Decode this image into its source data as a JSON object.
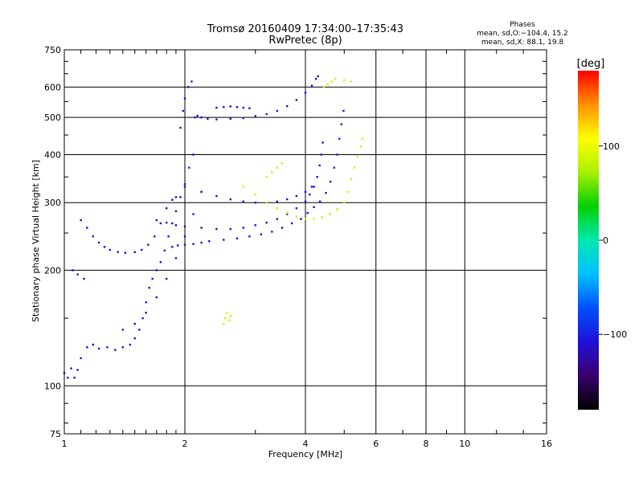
{
  "header": {
    "title_line1": "Tromsø 20160409 17:34:00–17:35:43",
    "title_line2": "RwPretec (8p)",
    "phases_title": "Phases",
    "phases_line1": "mean, sd,O:−104.4, 15.2",
    "phases_line2": "mean, sd,X:  88.1, 19.8"
  },
  "colorbar": {
    "label": "[deg]",
    "ticks": [
      "100",
      "0",
      "−100"
    ],
    "tick_values": [
      100,
      0,
      -100
    ],
    "range": [
      -180,
      180
    ],
    "colors": [
      "#000000",
      "#3a006e",
      "#1f10d8",
      "#0050ff",
      "#00c0ff",
      "#00e8b0",
      "#00d000",
      "#a8f000",
      "#ffff00",
      "#ff9000",
      "#ff0000"
    ]
  },
  "chart_data": {
    "type": "scatter",
    "title": "Tromsø 20160409 17:34:00–17:35:43",
    "subtitle": "RwPretec (8p)",
    "xlabel": "Frequency [MHz]",
    "ylabel": "Stationary phase Virtual Height [km]",
    "xscale": "log",
    "yscale": "log",
    "xlim": [
      1,
      16
    ],
    "ylim": [
      75,
      750
    ],
    "xticks": [
      1,
      2,
      4,
      6,
      8,
      10,
      16
    ],
    "xtick_labels": [
      "1",
      "2",
      "4",
      "6",
      "8",
      "10",
      "16"
    ],
    "yticks": [
      75,
      100,
      200,
      300,
      400,
      500,
      600,
      750
    ],
    "ytick_labels": [
      "75",
      "100",
      "200",
      "300",
      "400",
      "500",
      "600",
      "750"
    ],
    "grid": true,
    "series": [
      {
        "points": [
          [
            1.0,
            108
          ],
          [
            1.02,
            105
          ],
          [
            1.04,
            111
          ],
          [
            1.06,
            105
          ],
          [
            1.08,
            110
          ],
          [
            1.1,
            118
          ],
          [
            1.14,
            126
          ],
          [
            1.18,
            128
          ],
          [
            1.22,
            125
          ],
          [
            1.28,
            126
          ],
          [
            1.34,
            124
          ],
          [
            1.4,
            126
          ],
          [
            1.46,
            128
          ],
          [
            1.5,
            133
          ],
          [
            1.54,
            140
          ],
          [
            1.57,
            150
          ],
          [
            1.6,
            165
          ],
          [
            1.63,
            180
          ],
          [
            1.66,
            190
          ],
          [
            1.7,
            200
          ],
          [
            1.74,
            210
          ],
          [
            1.78,
            225
          ],
          [
            1.82,
            245
          ],
          [
            1.86,
            265
          ],
          [
            1.9,
            285
          ],
          [
            1.95,
            310
          ],
          [
            2.0,
            335
          ],
          [
            2.05,
            370
          ],
          [
            2.1,
            400
          ],
          [
            1.95,
            470
          ],
          [
            1.98,
            520
          ],
          [
            2.0,
            560
          ],
          [
            2.04,
            600
          ],
          [
            2.08,
            620
          ],
          [
            2.12,
            500
          ],
          [
            2.15,
            505
          ],
          [
            2.2,
            500
          ],
          [
            2.28,
            496
          ],
          [
            2.4,
            494
          ],
          [
            2.6,
            496
          ],
          [
            2.8,
            498
          ],
          [
            3.0,
            504
          ],
          [
            3.2,
            510
          ],
          [
            3.4,
            520
          ],
          [
            3.6,
            535
          ],
          [
            3.8,
            555
          ],
          [
            4.0,
            580
          ],
          [
            4.15,
            605
          ],
          [
            4.25,
            630
          ],
          [
            4.3,
            640
          ],
          [
            1.1,
            270
          ],
          [
            1.14,
            258
          ],
          [
            1.18,
            245
          ],
          [
            1.22,
            236
          ],
          [
            1.26,
            230
          ],
          [
            1.3,
            226
          ],
          [
            1.36,
            223
          ],
          [
            1.42,
            222
          ],
          [
            1.5,
            223
          ],
          [
            1.56,
            226
          ],
          [
            1.62,
            233
          ],
          [
            1.68,
            245
          ],
          [
            1.74,
            265
          ],
          [
            1.8,
            290
          ],
          [
            1.86,
            305
          ],
          [
            1.9,
            310
          ],
          [
            1.86,
            230
          ],
          [
            1.92,
            232
          ],
          [
            2.0,
            233
          ],
          [
            2.1,
            234
          ],
          [
            2.2,
            236
          ],
          [
            2.3,
            238
          ],
          [
            2.5,
            240
          ],
          [
            2.7,
            242
          ],
          [
            2.9,
            245
          ],
          [
            3.1,
            248
          ],
          [
            3.3,
            252
          ],
          [
            3.5,
            258
          ],
          [
            3.7,
            265
          ],
          [
            3.9,
            272
          ],
          [
            4.05,
            282
          ],
          [
            4.2,
            292
          ],
          [
            4.35,
            302
          ],
          [
            4.5,
            318
          ],
          [
            4.62,
            340
          ],
          [
            4.72,
            370
          ],
          [
            4.8,
            400
          ],
          [
            4.86,
            440
          ],
          [
            4.92,
            480
          ],
          [
            4.98,
            520
          ],
          [
            1.7,
            270
          ],
          [
            1.8,
            266
          ],
          [
            1.9,
            262
          ],
          [
            2.0,
            260
          ],
          [
            2.2,
            258
          ],
          [
            2.4,
            256
          ],
          [
            2.6,
            256
          ],
          [
            2.8,
            258
          ],
          [
            3.0,
            262
          ],
          [
            3.2,
            266
          ],
          [
            3.4,
            272
          ],
          [
            3.6,
            280
          ],
          [
            3.8,
            290
          ],
          [
            4.0,
            302
          ],
          [
            4.1,
            315
          ],
          [
            4.2,
            330
          ],
          [
            4.28,
            350
          ],
          [
            4.34,
            375
          ],
          [
            4.38,
            400
          ],
          [
            4.42,
            430
          ],
          [
            2.0,
            330
          ],
          [
            2.2,
            320
          ],
          [
            2.4,
            312
          ],
          [
            2.6,
            306
          ],
          [
            2.8,
            302
          ],
          [
            3.0,
            300
          ],
          [
            3.2,
            300
          ],
          [
            3.4,
            302
          ],
          [
            3.6,
            306
          ],
          [
            3.8,
            312
          ],
          [
            4.0,
            320
          ],
          [
            4.15,
            330
          ],
          [
            1.4,
            140
          ],
          [
            1.5,
            145
          ],
          [
            1.6,
            155
          ],
          [
            1.7,
            170
          ],
          [
            1.8,
            190
          ],
          [
            1.9,
            215
          ],
          [
            2.0,
            245
          ],
          [
            2.1,
            280
          ],
          [
            2.2,
            320
          ],
          [
            2.4,
            530
          ],
          [
            2.5,
            532
          ],
          [
            2.6,
            534
          ],
          [
            2.7,
            532
          ],
          [
            2.8,
            530
          ],
          [
            2.9,
            528
          ],
          [
            1.05,
            200
          ],
          [
            1.08,
            195
          ],
          [
            1.12,
            190
          ]
        ],
        "phase": -110
      },
      {
        "points": [
          [
            2.8,
            330
          ],
          [
            3.0,
            315
          ],
          [
            3.2,
            300
          ],
          [
            3.4,
            290
          ],
          [
            3.6,
            282
          ],
          [
            3.8,
            276
          ],
          [
            4.0,
            272
          ],
          [
            4.2,
            272
          ],
          [
            4.4,
            275
          ],
          [
            4.6,
            280
          ],
          [
            4.8,
            288
          ],
          [
            5.0,
            300
          ],
          [
            5.1,
            320
          ],
          [
            5.2,
            345
          ],
          [
            5.3,
            370
          ],
          [
            5.4,
            395
          ],
          [
            5.5,
            420
          ],
          [
            5.55,
            440
          ],
          [
            3.2,
            350
          ],
          [
            3.3,
            360
          ],
          [
            3.4,
            370
          ],
          [
            3.5,
            380
          ],
          [
            2.5,
            145
          ],
          [
            2.52,
            150
          ],
          [
            2.55,
            155
          ],
          [
            2.58,
            148
          ],
          [
            2.6,
            152
          ],
          [
            4.45,
            600
          ],
          [
            4.55,
            610
          ],
          [
            4.65,
            620
          ],
          [
            4.75,
            630
          ],
          [
            5.0,
            625
          ],
          [
            5.2,
            620
          ]
        ],
        "phase": 85
      }
    ]
  }
}
